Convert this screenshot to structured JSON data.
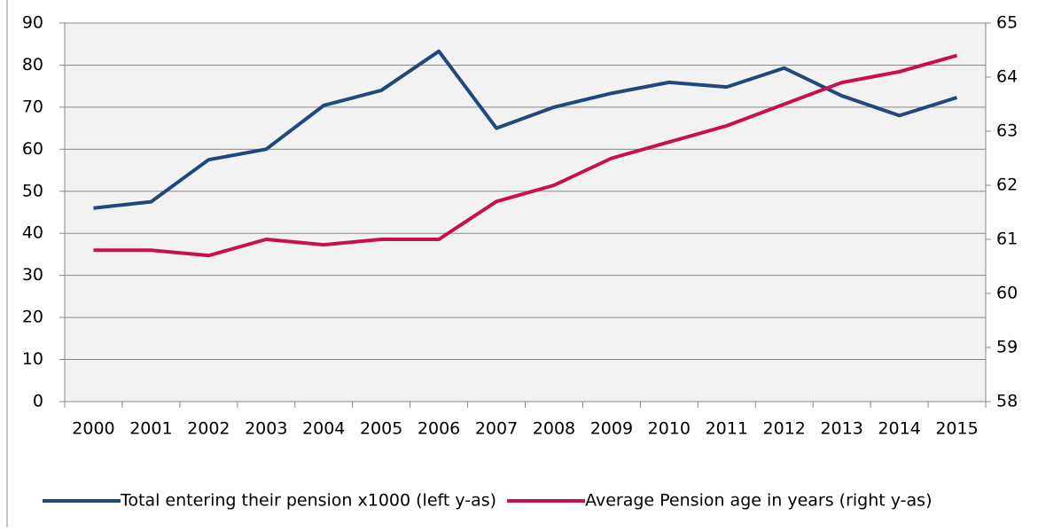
{
  "chart_data": {
    "type": "line",
    "categories": [
      "2000",
      "2001",
      "2002",
      "2003",
      "2004",
      "2005",
      "2006",
      "2007",
      "2008",
      "2009",
      "2010",
      "2011",
      "2012",
      "2013",
      "2014",
      "2015"
    ],
    "series": [
      {
        "name": "Total entering their pension x1000 (left y-as)",
        "color": "#1f497d",
        "values": [
          46,
          47.5,
          57.5,
          60,
          70.4,
          74,
          83.3,
          65,
          70,
          73.3,
          75.9,
          74.8,
          79.3,
          72.7,
          68,
          72.3
        ]
      },
      {
        "name": "Average Pension age in years (right y-as)",
        "color": "#c8104e",
        "axis": "y2",
        "values": [
          60.8,
          60.8,
          60.7,
          61,
          60.9,
          61,
          61,
          61.7,
          62,
          62.5,
          62.8,
          63.1,
          63.5,
          63.9,
          64.1,
          64.4
        ]
      }
    ],
    "ylim": [
      0,
      90
    ],
    "yticks": [
      0,
      10,
      20,
      30,
      40,
      50,
      60,
      70,
      80,
      90
    ],
    "y2lim": [
      58,
      65
    ],
    "y2ticks": [
      58,
      59,
      60,
      61,
      62,
      63,
      64,
      65
    ],
    "grid": true,
    "legend": "bottom"
  }
}
